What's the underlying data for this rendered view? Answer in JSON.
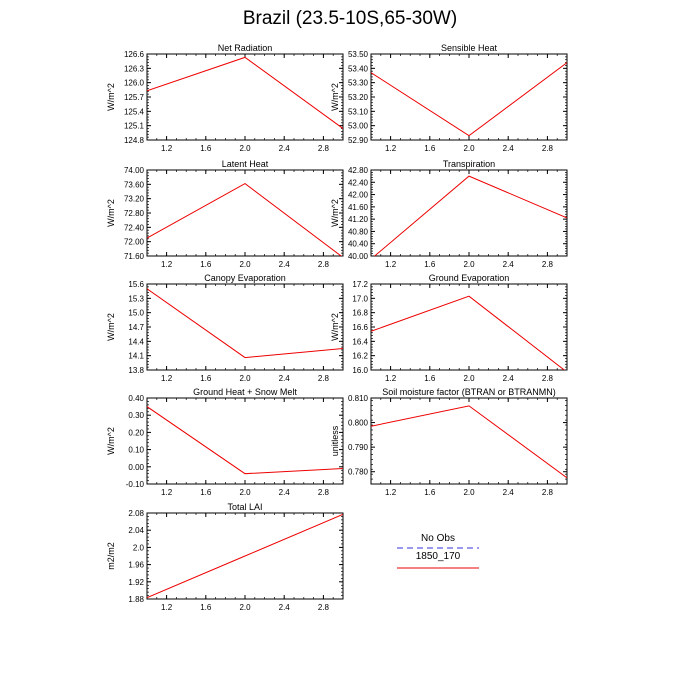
{
  "page": {
    "title": "Brazil (23.5-10S,65-30W)"
  },
  "legend": {
    "entries": [
      {
        "name": "No Obs",
        "color": "#9999ee",
        "style": "dashed"
      },
      {
        "name": "1850_170",
        "color": "#ee0000",
        "style": "solid"
      }
    ]
  },
  "chart_data": [
    {
      "type": "line",
      "title": "Net Radiation",
      "ylabel": "W/m^2",
      "x": [
        1,
        2,
        3
      ],
      "series": [
        {
          "values": [
            125.83,
            126.53,
            125.04
          ]
        }
      ],
      "xlim": [
        1,
        3
      ],
      "ylim": [
        124.8,
        126.6
      ],
      "xticks": [
        "1.2",
        "1.6",
        "2.0",
        "2.4",
        "2.8"
      ],
      "yticks": [
        "124.8",
        "125.1",
        "125.4",
        "125.7",
        "126.0",
        "126.3",
        "126.6"
      ],
      "color": "#ee0000"
    },
    {
      "type": "line",
      "title": "Sensible Heat",
      "ylabel": "W/m^2",
      "x": [
        1,
        2,
        3
      ],
      "series": [
        {
          "values": [
            53.37,
            52.93,
            53.44
          ]
        }
      ],
      "xlim": [
        1,
        3
      ],
      "ylim": [
        52.9,
        53.5
      ],
      "xticks": [
        "1.2",
        "1.6",
        "2.0",
        "2.4",
        "2.8"
      ],
      "yticks": [
        "52.90",
        "53.00",
        "53.10",
        "53.20",
        "53.30",
        "53.40",
        "53.50"
      ],
      "color": "#ee0000"
    },
    {
      "type": "line",
      "title": "Latent Heat",
      "ylabel": "W/m^2",
      "x": [
        1,
        2,
        3
      ],
      "series": [
        {
          "values": [
            72.1,
            73.62,
            71.56
          ]
        }
      ],
      "xlim": [
        1,
        3
      ],
      "ylim": [
        71.6,
        74.0
      ],
      "xticks": [
        "1.2",
        "1.6",
        "2.0",
        "2.4",
        "2.8"
      ],
      "yticks": [
        "71.60",
        "72.00",
        "72.40",
        "72.80",
        "73.20",
        "73.60",
        "74.00"
      ],
      "color": "#ee0000"
    },
    {
      "type": "line",
      "title": "Transpiration",
      "ylabel": "W/m^2",
      "x": [
        1,
        2,
        3
      ],
      "series": [
        {
          "values": [
            39.9,
            42.6,
            41.24
          ]
        }
      ],
      "xlim": [
        1,
        3
      ],
      "ylim": [
        40.0,
        42.8
      ],
      "xticks": [
        "1.2",
        "1.6",
        "2.0",
        "2.4",
        "2.8"
      ],
      "yticks": [
        "40.00",
        "40.40",
        "40.80",
        "41.20",
        "41.60",
        "42.00",
        "42.40",
        "42.80"
      ],
      "color": "#ee0000"
    },
    {
      "type": "line",
      "title": "Canopy Evaporation",
      "ylabel": "W/m^2",
      "x": [
        1,
        2,
        3
      ],
      "series": [
        {
          "values": [
            15.5,
            14.06,
            14.25
          ]
        }
      ],
      "xlim": [
        1,
        3
      ],
      "ylim": [
        13.8,
        15.6
      ],
      "xticks": [
        "1.2",
        "1.6",
        "2.0",
        "2.4",
        "2.8"
      ],
      "yticks": [
        "13.8",
        "14.1",
        "14.4",
        "14.7",
        "15.0",
        "15.3",
        "15.6"
      ],
      "color": "#ee0000"
    },
    {
      "type": "line",
      "title": "Ground Evaporation",
      "ylabel": "W/m^2",
      "x": [
        1,
        2,
        3
      ],
      "series": [
        {
          "values": [
            16.54,
            17.03,
            15.97
          ]
        }
      ],
      "xlim": [
        1,
        3
      ],
      "ylim": [
        16.0,
        17.2
      ],
      "xticks": [
        "1.2",
        "1.6",
        "2.0",
        "2.4",
        "2.8"
      ],
      "yticks": [
        "16.0",
        "16.2",
        "16.4",
        "16.6",
        "16.8",
        "17.0",
        "17.2"
      ],
      "color": "#ee0000"
    },
    {
      "type": "line",
      "title": "Ground Heat + Snow Melt",
      "ylabel": "W/m^2",
      "x": [
        1,
        2,
        3
      ],
      "series": [
        {
          "values": [
            0.35,
            -0.04,
            -0.01
          ]
        }
      ],
      "xlim": [
        1,
        3
      ],
      "ylim": [
        -0.1,
        0.4
      ],
      "xticks": [
        "1.2",
        "1.6",
        "2.0",
        "2.4",
        "2.8"
      ],
      "yticks": [
        "-0.10",
        "0.00",
        "0.10",
        "0.20",
        "0.30",
        "0.40"
      ],
      "color": "#ee0000"
    },
    {
      "type": "line",
      "title": "Soil moisture factor (BTRAN or BTRANMN)",
      "ylabel": "unitless",
      "x": [
        1,
        2,
        3
      ],
      "series": [
        {
          "values": [
            0.7985,
            0.8068,
            0.7775
          ]
        }
      ],
      "xlim": [
        1,
        3
      ],
      "ylim": [
        0.775,
        0.81
      ],
      "xticks": [
        "1.2",
        "1.6",
        "2.0",
        "2.4",
        "2.8"
      ],
      "yticks": [
        "0.780",
        "0.790",
        "0.800",
        "0.810"
      ],
      "color": "#ee0000"
    },
    {
      "type": "line",
      "title": "Total LAI",
      "ylabel": "m2/m2",
      "x": [
        1,
        2,
        3
      ],
      "series": [
        {
          "values": [
            1.883,
            1.98,
            2.077
          ]
        }
      ],
      "xlim": [
        1,
        3
      ],
      "ylim": [
        1.88,
        2.08
      ],
      "xticks": [
        "1.2",
        "1.6",
        "2.0",
        "2.4",
        "2.8"
      ],
      "yticks": [
        "1.88",
        "1.92",
        "1.96",
        "2.0",
        "2.04",
        "2.08"
      ],
      "color": "#ee0000"
    }
  ]
}
